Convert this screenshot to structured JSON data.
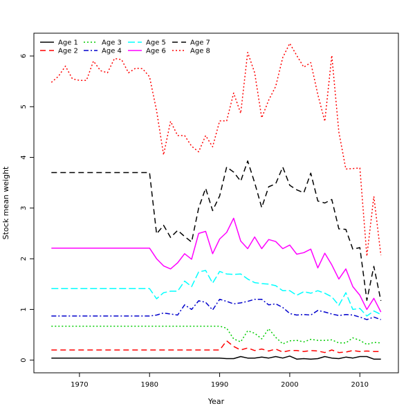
{
  "chart_data": {
    "type": "line",
    "title": "",
    "xlabel": "Year",
    "ylabel": "Stock mean weight",
    "xlim": [
      1963.5,
      2015.5
    ],
    "ylim": [
      -0.25,
      6.45
    ],
    "x_ticks": [
      1970,
      1980,
      1990,
      2000,
      2010
    ],
    "y_ticks": [
      0,
      1,
      2,
      3,
      4,
      5,
      6
    ],
    "grid": false,
    "legend_position": "top-left",
    "x": [
      1966,
      1967,
      1968,
      1969,
      1970,
      1971,
      1972,
      1973,
      1974,
      1975,
      1976,
      1977,
      1978,
      1979,
      1980,
      1981,
      1982,
      1983,
      1984,
      1985,
      1986,
      1987,
      1988,
      1989,
      1990,
      1991,
      1992,
      1993,
      1994,
      1995,
      1996,
      1997,
      1998,
      1999,
      2000,
      2001,
      2002,
      2003,
      2004,
      2005,
      2006,
      2007,
      2008,
      2009,
      2010,
      2011,
      2012,
      2013
    ],
    "series": [
      {
        "name": "Age 1",
        "color": "#000000",
        "dash": "solid",
        "values": [
          0.04,
          0.04,
          0.04,
          0.04,
          0.04,
          0.04,
          0.04,
          0.04,
          0.04,
          0.04,
          0.04,
          0.04,
          0.04,
          0.04,
          0.04,
          0.04,
          0.04,
          0.04,
          0.04,
          0.04,
          0.04,
          0.04,
          0.04,
          0.04,
          0.04,
          0.03,
          0.03,
          0.07,
          0.04,
          0.04,
          0.06,
          0.04,
          0.07,
          0.04,
          0.08,
          0.02,
          0.03,
          0.02,
          0.03,
          0.07,
          0.04,
          0.03,
          0.06,
          0.04,
          0.07,
          0.07,
          0.02,
          0.02
        ]
      },
      {
        "name": "Age 2",
        "color": "#ff0000",
        "dash": "dashed",
        "values": [
          0.2,
          0.2,
          0.2,
          0.2,
          0.2,
          0.2,
          0.2,
          0.2,
          0.2,
          0.2,
          0.2,
          0.2,
          0.2,
          0.2,
          0.2,
          0.2,
          0.2,
          0.2,
          0.2,
          0.2,
          0.2,
          0.2,
          0.2,
          0.2,
          0.2,
          0.38,
          0.27,
          0.2,
          0.24,
          0.19,
          0.22,
          0.18,
          0.22,
          0.16,
          0.19,
          0.19,
          0.17,
          0.19,
          0.18,
          0.15,
          0.2,
          0.15,
          0.16,
          0.19,
          0.17,
          0.18,
          0.17,
          0.17
        ]
      },
      {
        "name": "Age 3",
        "color": "#00cc00",
        "dash": "dotted",
        "values": [
          0.67,
          0.67,
          0.67,
          0.67,
          0.67,
          0.67,
          0.67,
          0.67,
          0.67,
          0.67,
          0.67,
          0.67,
          0.67,
          0.67,
          0.67,
          0.67,
          0.67,
          0.67,
          0.67,
          0.67,
          0.67,
          0.67,
          0.67,
          0.67,
          0.67,
          0.63,
          0.42,
          0.36,
          0.58,
          0.53,
          0.42,
          0.62,
          0.45,
          0.32,
          0.38,
          0.39,
          0.36,
          0.41,
          0.39,
          0.39,
          0.4,
          0.34,
          0.34,
          0.44,
          0.39,
          0.31,
          0.35,
          0.34
        ]
      },
      {
        "name": "Age 4",
        "color": "#0000cc",
        "dash": "dashdot",
        "values": [
          0.87,
          0.87,
          0.87,
          0.87,
          0.87,
          0.87,
          0.87,
          0.87,
          0.87,
          0.87,
          0.87,
          0.87,
          0.87,
          0.87,
          0.87,
          0.89,
          0.93,
          0.91,
          0.89,
          1.09,
          1.0,
          1.17,
          1.14,
          0.99,
          1.2,
          1.16,
          1.11,
          1.13,
          1.16,
          1.2,
          1.2,
          1.09,
          1.11,
          1.04,
          0.92,
          0.89,
          0.9,
          0.89,
          0.98,
          0.95,
          0.91,
          0.88,
          0.9,
          0.89,
          0.85,
          0.8,
          0.85,
          0.8
        ]
      },
      {
        "name": "Age 5",
        "color": "#00ffff",
        "dash": "longdash",
        "values": [
          1.41,
          1.41,
          1.41,
          1.41,
          1.41,
          1.41,
          1.41,
          1.41,
          1.41,
          1.41,
          1.41,
          1.41,
          1.41,
          1.41,
          1.41,
          1.21,
          1.33,
          1.36,
          1.36,
          1.56,
          1.45,
          1.74,
          1.77,
          1.52,
          1.75,
          1.7,
          1.69,
          1.7,
          1.6,
          1.53,
          1.51,
          1.5,
          1.47,
          1.37,
          1.37,
          1.28,
          1.35,
          1.32,
          1.37,
          1.32,
          1.25,
          1.08,
          1.33,
          1.0,
          1.02,
          0.87,
          0.97,
          0.9
        ]
      },
      {
        "name": "Age 6",
        "color": "#ff00ff",
        "dash": "solid",
        "values": [
          2.21,
          2.21,
          2.21,
          2.21,
          2.21,
          2.21,
          2.21,
          2.21,
          2.21,
          2.21,
          2.21,
          2.21,
          2.21,
          2.21,
          2.21,
          2.0,
          1.86,
          1.8,
          1.92,
          2.1,
          1.99,
          2.5,
          2.54,
          2.1,
          2.39,
          2.52,
          2.8,
          2.35,
          2.2,
          2.43,
          2.2,
          2.38,
          2.34,
          2.2,
          2.27,
          2.09,
          2.12,
          2.19,
          1.82,
          2.11,
          1.88,
          1.6,
          1.8,
          1.45,
          1.28,
          1.0,
          1.22,
          0.95
        ]
      },
      {
        "name": "Age 7",
        "color": "#000000",
        "dash": "dashed",
        "values": [
          3.7,
          3.7,
          3.7,
          3.7,
          3.7,
          3.7,
          3.7,
          3.7,
          3.7,
          3.7,
          3.7,
          3.7,
          3.7,
          3.7,
          3.7,
          2.49,
          2.66,
          2.42,
          2.56,
          2.44,
          2.33,
          3.0,
          3.39,
          2.95,
          3.24,
          3.81,
          3.71,
          3.53,
          3.93,
          3.5,
          3.01,
          3.42,
          3.48,
          3.81,
          3.45,
          3.36,
          3.3,
          3.69,
          3.14,
          3.1,
          3.17,
          2.59,
          2.58,
          2.19,
          2.22,
          1.18,
          1.85,
          1.17
        ]
      },
      {
        "name": "Age 8",
        "color": "#ff0000",
        "dash": "dotted",
        "values": [
          5.48,
          5.6,
          5.8,
          5.55,
          5.52,
          5.52,
          5.9,
          5.71,
          5.67,
          5.95,
          5.93,
          5.67,
          5.76,
          5.75,
          5.59,
          4.92,
          4.05,
          4.71,
          4.43,
          4.43,
          4.22,
          4.11,
          4.43,
          4.21,
          4.72,
          4.72,
          5.27,
          4.87,
          6.07,
          5.67,
          4.78,
          5.13,
          5.4,
          5.97,
          6.25,
          6.01,
          5.78,
          5.87,
          5.24,
          4.71,
          6.01,
          4.5,
          3.77,
          3.78,
          3.79,
          2.05,
          3.23,
          2.07
        ]
      }
    ]
  }
}
